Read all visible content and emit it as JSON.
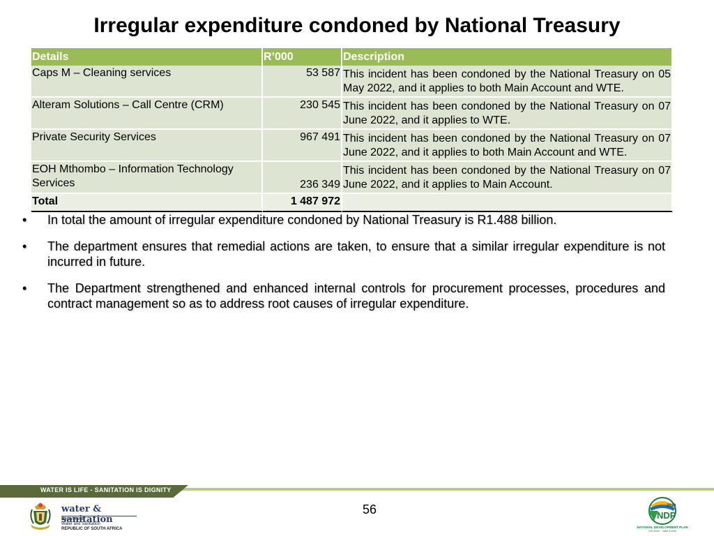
{
  "page": {
    "title": "Irregular expenditure condoned by National Treasury",
    "page_number": "56"
  },
  "table": {
    "headers": [
      "Details",
      "R’000",
      "Description"
    ],
    "rows": [
      {
        "details": "Caps M – Cleaning services",
        "amount": "53 587",
        "description": "This incident has been condoned by the National Treasury on 05 May 2022, and it applies to both Main Account and WTE."
      },
      {
        "details": "Alteram Solutions – Call Centre (CRM)",
        "amount": "230 545",
        "description": "This incident has been condoned by the National Treasury on 07 June 2022, and it applies to WTE."
      },
      {
        "details": "Private Security Services",
        "amount": "967 491",
        "description": "This incident has been condoned by the National Treasury on 07 June 2022, and it applies to both Main Account and WTE."
      },
      {
        "details": "EOH Mthombo – Information Technology Services",
        "amount": "236 349",
        "description": "This incident has been condoned by the National Treasury on 07 June 2022, and it applies to Main Account."
      }
    ],
    "total": {
      "label": "Total",
      "amount": "1 487 972"
    }
  },
  "bullets": [
    "In total the amount of irregular expenditure condoned by National Treasury is R1.488 billion.",
    "The department ensures that remedial actions are taken, to ensure that a similar irregular expenditure is not incurred in future.",
    "The Department strengthened and enhanced internal controls for procurement processes, procedures and contract management so as to address root causes of irregular expenditure."
  ],
  "footer": {
    "slogan": "WATER IS LIFE - SANITATION IS DIGNITY",
    "dept_logo": {
      "name": "water & sanitation",
      "line1": "Department:",
      "line2": "Water and Sanitation",
      "line3": "REPUBLIC OF SOUTH AFRICA"
    },
    "ndp_logo": {
      "year": "2030",
      "name": "NDP",
      "caption": "NATIONAL DEVELOPMENT PLAN",
      "tagline": "Our future - make it work"
    }
  },
  "colors": {
    "header_green": "#9bbb59",
    "row_green": "#dde5d2",
    "footer_dark": "#5a6a3a",
    "footer_light": "#b9c98a"
  }
}
